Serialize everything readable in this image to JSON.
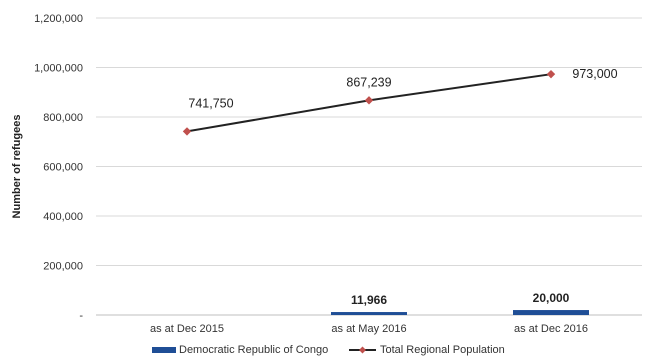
{
  "chart_data": {
    "type": "bar",
    "categories": [
      "as at Dec 2015",
      "as at May 2016",
      "as at Dec 2016"
    ],
    "series": [
      {
        "name": "Democratic Republic of Congo",
        "type": "bar",
        "values": [
          0,
          11966,
          20000
        ],
        "labels": [
          "",
          "11,966",
          "20,000"
        ],
        "color": "#1f4e96"
      },
      {
        "name": "Total Regional Population",
        "type": "line",
        "values": [
          741750,
          867239,
          973000
        ],
        "labels": [
          "741,750",
          "867,239",
          "973,000"
        ],
        "color": "#222222",
        "marker_color": "#c0504d"
      }
    ],
    "ylabel": "Number of refugees",
    "xlabel": "",
    "ylim": [
      0,
      1200000
    ],
    "yticks": [
      {
        "value": 0,
        "label": "-"
      },
      {
        "value": 200000,
        "label": "200,000"
      },
      {
        "value": 400000,
        "label": "400,000"
      },
      {
        "value": 600000,
        "label": "600,000"
      },
      {
        "value": 800000,
        "label": "800,000"
      },
      {
        "value": 1000000,
        "label": "1,000,000"
      },
      {
        "value": 1200000,
        "label": "1,200,000"
      }
    ],
    "grid": true,
    "legend_position": "bottom",
    "grid_color": "#d9d9d9"
  }
}
